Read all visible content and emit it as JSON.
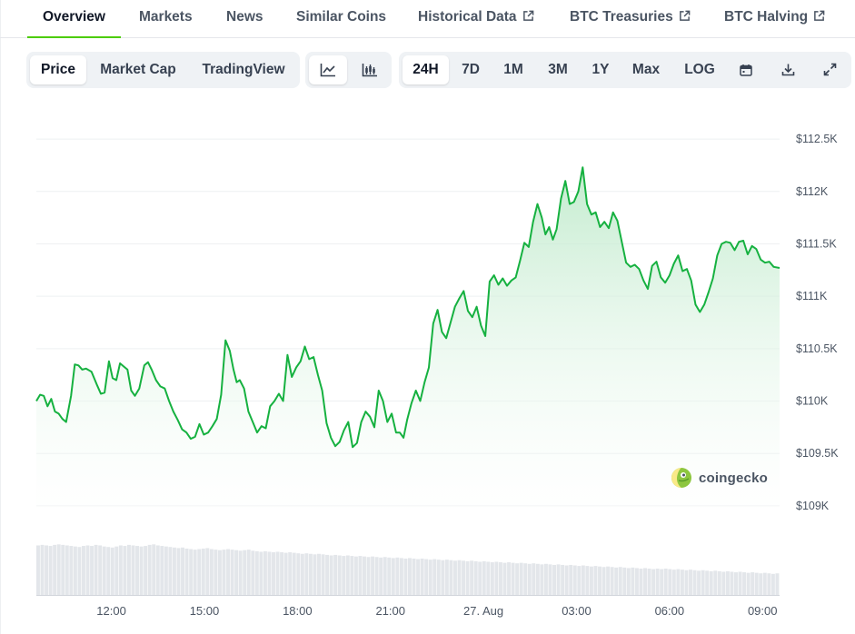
{
  "tabs": [
    {
      "label": "Overview",
      "active": true,
      "external": false
    },
    {
      "label": "Markets",
      "active": false,
      "external": false
    },
    {
      "label": "News",
      "active": false,
      "external": false
    },
    {
      "label": "Similar Coins",
      "active": false,
      "external": false
    },
    {
      "label": "Historical Data",
      "active": false,
      "external": true
    },
    {
      "label": "BTC Treasuries",
      "active": false,
      "external": true
    },
    {
      "label": "BTC Halving",
      "active": false,
      "external": true
    }
  ],
  "view_toggle": {
    "items": [
      "Price",
      "Market Cap",
      "TradingView"
    ],
    "selected": "Price"
  },
  "chart_style": {
    "items": [
      "line-chart-icon",
      "candlestick-chart-icon"
    ],
    "selected": "line-chart-icon"
  },
  "ranges": {
    "items": [
      "24H",
      "7D",
      "1M",
      "3M",
      "1Y",
      "Max",
      "LOG"
    ],
    "selected": "24H",
    "icons": [
      "calendar-icon",
      "download-icon",
      "expand-icon"
    ]
  },
  "watermark": {
    "text": "coingecko"
  },
  "colors": {
    "line": "#16b140",
    "accent": "#4bcc00",
    "fill_top": "#b9e8c6",
    "volume": "#e3e6ea"
  },
  "chart_data": {
    "type": "area",
    "title": "",
    "xlabel": "",
    "ylabel": "",
    "ylim": [
      108930,
      112570
    ],
    "x_ticks": [
      "12:00",
      "15:00",
      "18:00",
      "21:00",
      "27. Aug",
      "03:00",
      "06:00",
      "09:00"
    ],
    "x_tick_hours": [
      12,
      15,
      18,
      21,
      24,
      27,
      30,
      33
    ],
    "x_range_hours": [
      9.58,
      33.55
    ],
    "y_ticks": [
      {
        "value": 109000,
        "label": "$109K"
      },
      {
        "value": 109500,
        "label": "$109.5K"
      },
      {
        "value": 110000,
        "label": "$110K"
      },
      {
        "value": 110500,
        "label": "$110.5K"
      },
      {
        "value": 111000,
        "label": "$111K"
      },
      {
        "value": 111500,
        "label": "$111.5K"
      },
      {
        "value": 112000,
        "label": "$112K"
      },
      {
        "value": 112500,
        "label": "$112.5K"
      }
    ],
    "grid": true,
    "series": [
      {
        "name": "",
        "x_hours": [
          9.58,
          9.7,
          9.82,
          9.94,
          10.06,
          10.18,
          10.3,
          10.42,
          10.54,
          10.7,
          10.82,
          10.94,
          11.06,
          11.18,
          11.36,
          11.54,
          11.66,
          11.78,
          11.92,
          12.04,
          12.16,
          12.28,
          12.4,
          12.52,
          12.64,
          12.76,
          12.9,
          13.06,
          13.18,
          13.3,
          13.44,
          13.58,
          13.72,
          13.86,
          14,
          14.14,
          14.28,
          14.42,
          14.56,
          14.7,
          14.84,
          14.98,
          15.12,
          15.26,
          15.4,
          15.54,
          15.68,
          15.82,
          15.94,
          16.04,
          16.14,
          16.28,
          16.42,
          16.56,
          16.7,
          16.84,
          16.98,
          17.12,
          17.26,
          17.4,
          17.54,
          17.68,
          17.82,
          17.96,
          18.1,
          18.24,
          18.38,
          18.52,
          18.66,
          18.8,
          18.94,
          19.08,
          19.22,
          19.36,
          19.5,
          19.64,
          19.78,
          19.92,
          20.06,
          20.2,
          20.34,
          20.48,
          20.62,
          20.76,
          20.9,
          21.04,
          21.18,
          21.3,
          21.42,
          21.54,
          21.68,
          21.82,
          21.96,
          22.1,
          22.24,
          22.38,
          22.52,
          22.66,
          22.8,
          22.94,
          23.08,
          23.22,
          23.36,
          23.5,
          23.64,
          23.78,
          23.92,
          24.06,
          24.2,
          24.34,
          24.48,
          24.62,
          24.76,
          24.9,
          25.04,
          25.18,
          25.32,
          25.46,
          25.6,
          25.74,
          25.88,
          26,
          26.12,
          26.24,
          26.36,
          26.5,
          26.64,
          26.78,
          26.92,
          27.06,
          27.2,
          27.34,
          27.48,
          27.62,
          27.76,
          27.9,
          28.04,
          28.18,
          28.32,
          28.46,
          28.6,
          28.74,
          28.88,
          29.02,
          29.16,
          29.3,
          29.44,
          29.58,
          29.72,
          29.86,
          30,
          30.14,
          30.28,
          30.42,
          30.56,
          30.7,
          30.84,
          30.98,
          31.12,
          31.26,
          31.4,
          31.54,
          31.68,
          31.82,
          31.96,
          32.1,
          32.24,
          32.38,
          32.52,
          32.66,
          32.8,
          32.94,
          33.08,
          33.22,
          33.36,
          33.55
        ],
        "values": [
          110000,
          110060,
          110050,
          109950,
          110020,
          109900,
          109880,
          109830,
          109800,
          110050,
          110350,
          110340,
          110300,
          110310,
          110280,
          110150,
          110070,
          110080,
          110380,
          110220,
          110200,
          110360,
          110330,
          110300,
          110100,
          110050,
          110120,
          110340,
          110370,
          110300,
          110200,
          110140,
          110120,
          110000,
          109900,
          109820,
          109730,
          109700,
          109640,
          109660,
          109780,
          109680,
          109700,
          109760,
          109830,
          110060,
          110580,
          110480,
          110300,
          110180,
          110200,
          110120,
          109900,
          109800,
          109700,
          109760,
          109740,
          109950,
          110000,
          110070,
          110000,
          110440,
          110230,
          110320,
          110380,
          110520,
          110400,
          110420,
          110250,
          110100,
          109790,
          109650,
          109570,
          109610,
          109720,
          109800,
          109560,
          109600,
          109800,
          109900,
          109850,
          109750,
          110100,
          110000,
          109800,
          109880,
          109700,
          109700,
          109650,
          109820,
          109980,
          110100,
          110000,
          110180,
          110320,
          110740,
          110870,
          110660,
          110600,
          110750,
          110900,
          110980,
          111050,
          110860,
          110800,
          110900,
          110720,
          110620,
          111140,
          111200,
          111110,
          111170,
          111100,
          111150,
          111180,
          111340,
          111510,
          111470,
          111710,
          111880,
          111750,
          111590,
          111660,
          111540,
          111640,
          111930,
          112100,
          111880,
          111900,
          112000,
          112230,
          111880,
          111780,
          111800,
          111660,
          111710,
          111650,
          111800,
          111720,
          111520,
          111320,
          111280,
          111300,
          111260,
          111150,
          111070,
          111290,
          111330,
          111180,
          111130,
          111200,
          111310,
          111390,
          111240,
          111260,
          111150,
          110920,
          110850,
          110920,
          111040,
          111170,
          111390,
          111500,
          111520,
          111510,
          111440,
          111520,
          111530,
          111400,
          111480,
          111450,
          111350,
          111320,
          111330,
          111280,
          111270
        ]
      }
    ],
    "volume": {
      "relative_values": [
        0.94,
        0.95,
        0.94,
        0.93,
        0.95,
        0.96,
        0.95,
        0.94,
        0.93,
        0.92,
        0.91,
        0.93,
        0.94,
        0.93,
        0.95,
        0.94,
        0.92,
        0.91,
        0.9,
        0.92,
        0.94,
        0.93,
        0.95,
        0.94,
        0.93,
        0.92,
        0.93,
        0.95,
        0.96,
        0.94,
        0.93,
        0.92,
        0.91,
        0.9,
        0.89,
        0.9,
        0.88,
        0.87,
        0.86,
        0.87,
        0.88,
        0.89,
        0.87,
        0.86,
        0.85,
        0.86,
        0.87,
        0.86,
        0.85,
        0.84,
        0.85,
        0.86,
        0.84,
        0.83,
        0.82,
        0.83,
        0.82,
        0.81,
        0.82,
        0.81,
        0.8,
        0.81,
        0.8,
        0.79,
        0.78,
        0.79,
        0.78,
        0.77,
        0.78,
        0.77,
        0.76,
        0.75,
        0.76,
        0.75,
        0.74,
        0.75,
        0.74,
        0.73,
        0.74,
        0.73,
        0.72,
        0.73,
        0.72,
        0.71,
        0.72,
        0.71,
        0.7,
        0.71,
        0.7,
        0.69,
        0.7,
        0.69,
        0.68,
        0.69,
        0.68,
        0.67,
        0.68,
        0.67,
        0.66,
        0.67,
        0.66,
        0.65,
        0.66,
        0.65,
        0.64,
        0.65,
        0.64,
        0.63,
        0.64,
        0.63,
        0.62,
        0.63,
        0.62,
        0.61,
        0.62,
        0.61,
        0.6,
        0.61,
        0.6,
        0.59,
        0.6,
        0.59,
        0.58,
        0.59,
        0.58,
        0.57,
        0.58,
        0.57,
        0.56,
        0.57,
        0.56,
        0.55,
        0.56,
        0.55,
        0.54,
        0.55,
        0.54,
        0.53,
        0.54,
        0.53,
        0.52,
        0.53,
        0.52,
        0.51,
        0.52,
        0.51,
        0.5,
        0.51,
        0.5,
        0.49,
        0.5,
        0.49,
        0.5,
        0.49,
        0.48,
        0.49,
        0.48,
        0.47,
        0.48,
        0.47,
        0.46,
        0.47,
        0.46,
        0.45,
        0.46,
        0.45,
        0.44,
        0.45,
        0.44,
        0.43,
        0.44,
        0.43,
        0.42,
        0.43,
        0.42,
        0.41,
        0.42,
        0.41,
        0.4,
        0.41
      ]
    }
  }
}
